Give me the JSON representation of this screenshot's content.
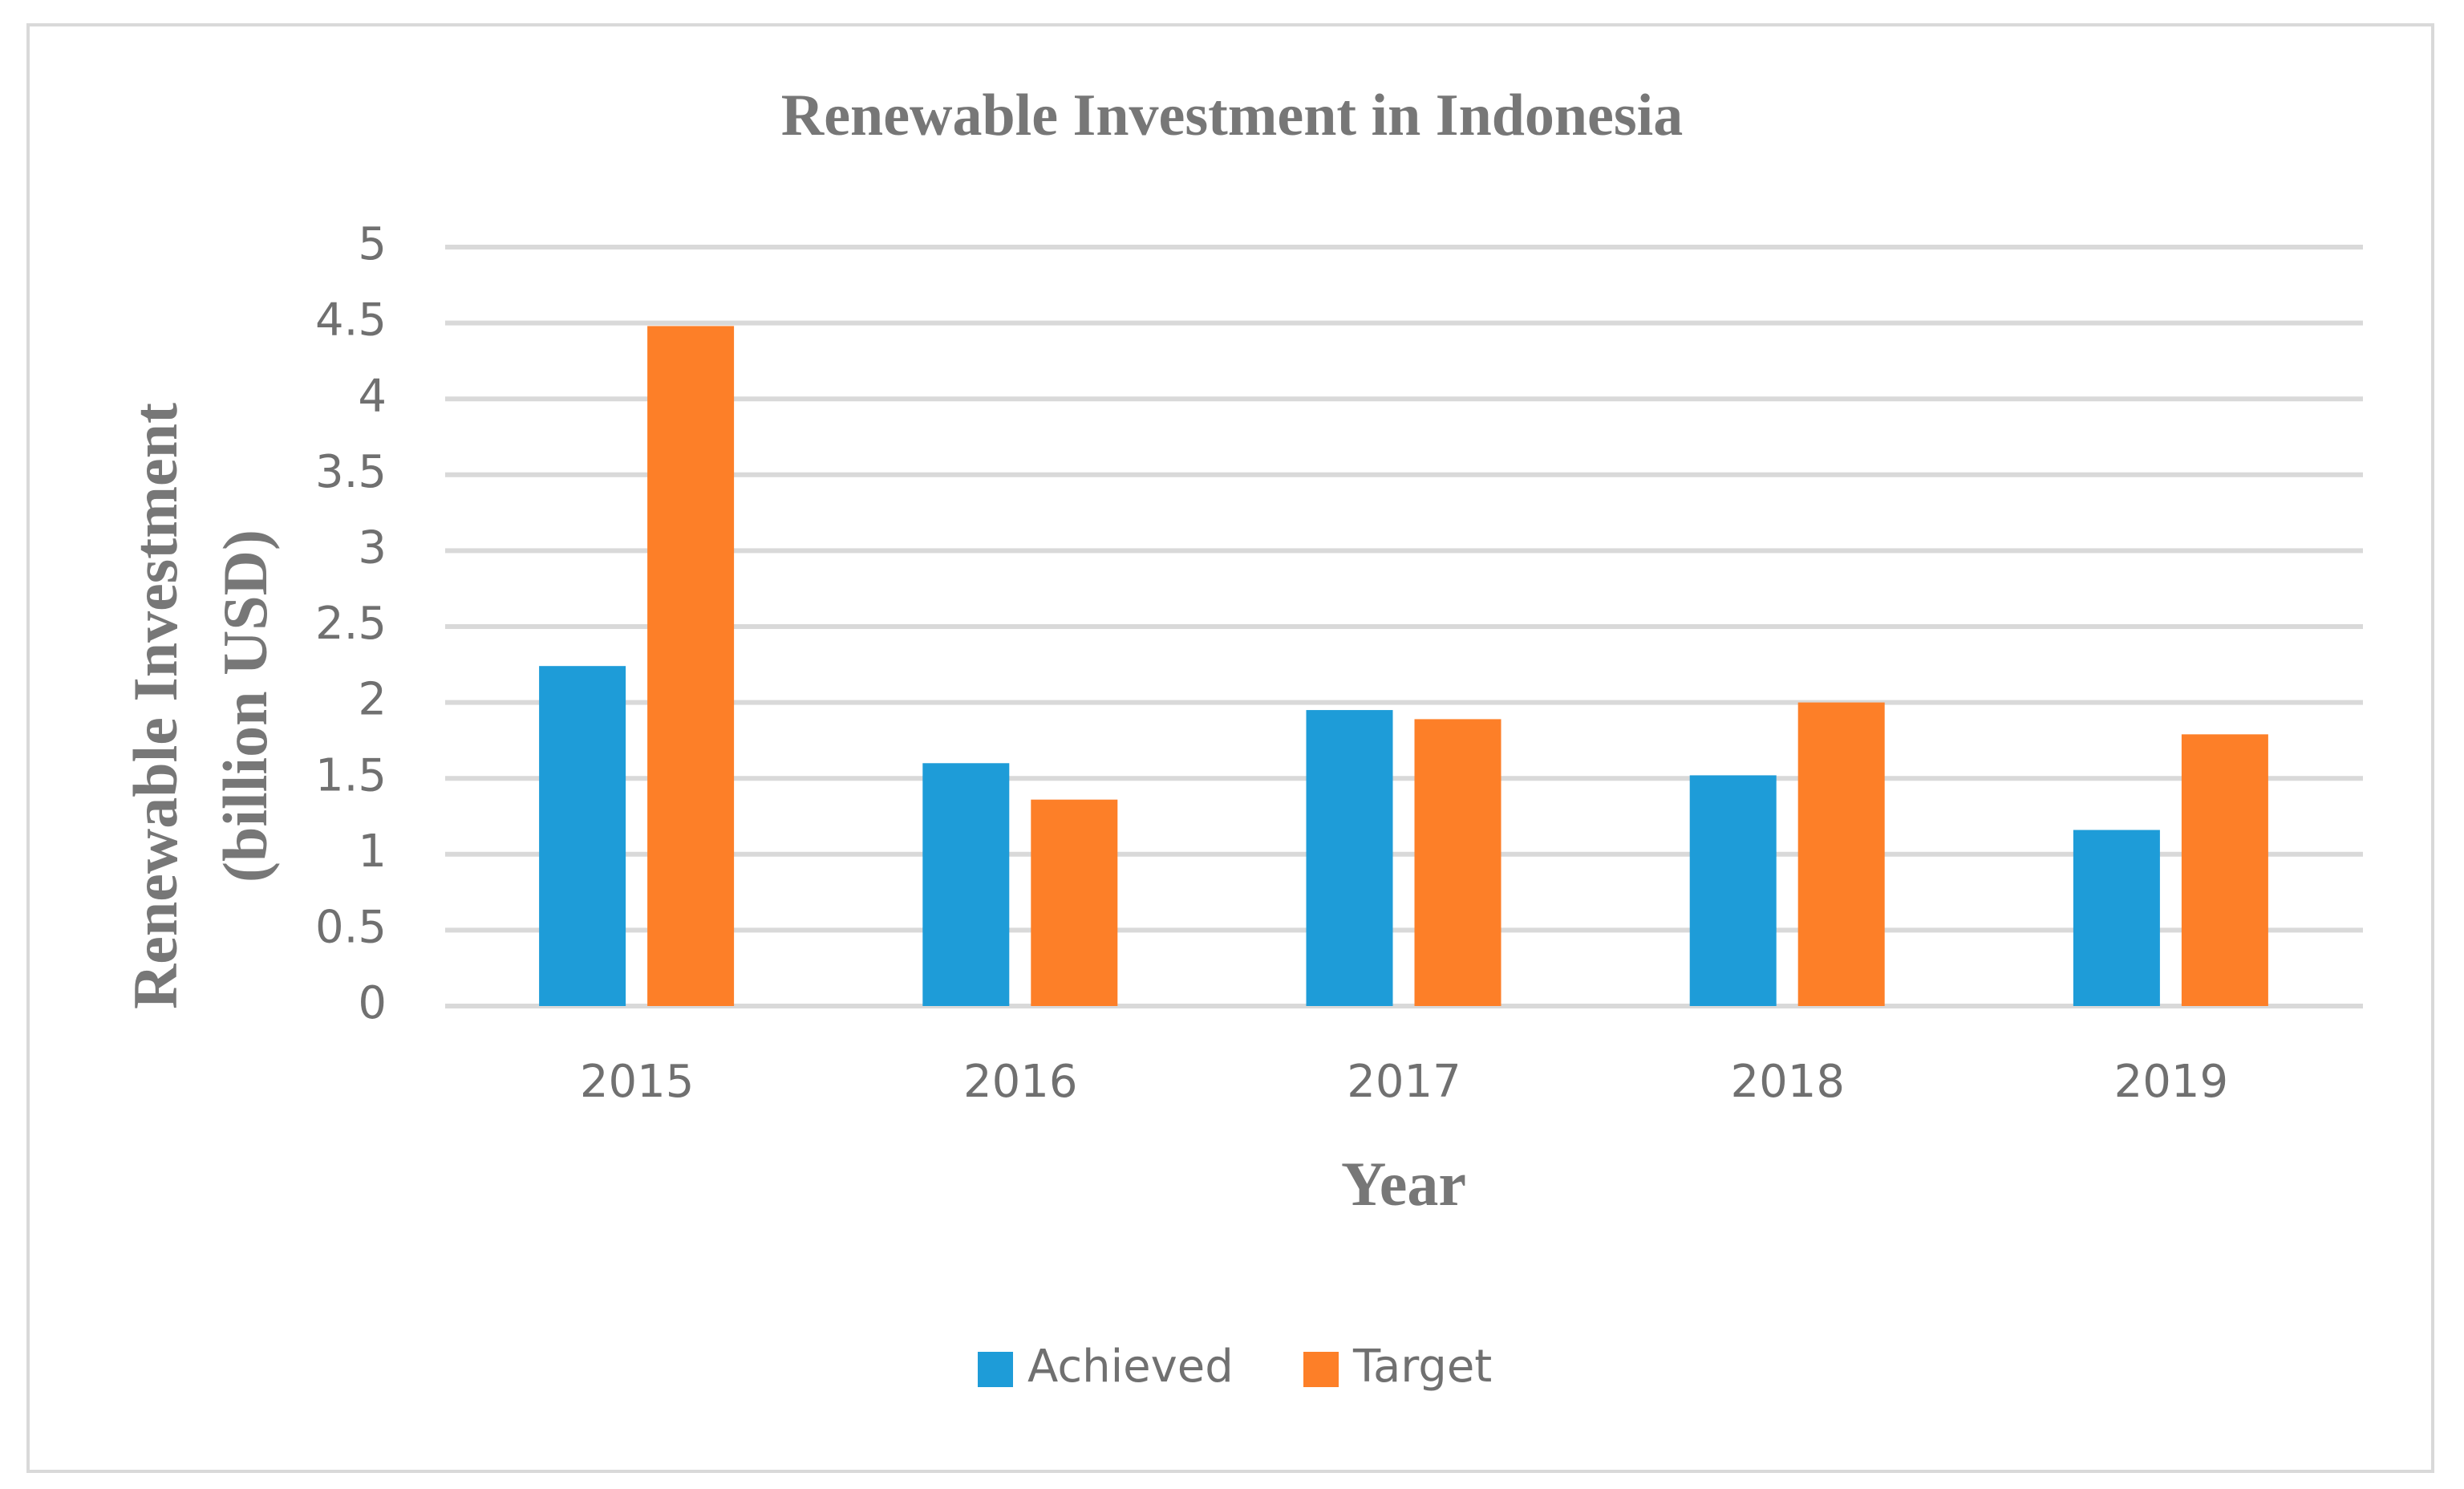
{
  "chart_data": {
    "type": "bar",
    "title": "Renewable Investment in Indonesia",
    "xlabel": "Year",
    "ylabel": [
      "Renewable Investment",
      "(billion USD)"
    ],
    "categories": [
      "2015",
      "2016",
      "2017",
      "2018",
      "2019"
    ],
    "series": [
      {
        "name": "Achieved",
        "color": "#1e9cd8",
        "values": [
          2.24,
          1.6,
          1.95,
          1.52,
          1.16
        ]
      },
      {
        "name": "Target",
        "color": "#fd7f28",
        "values": [
          4.48,
          1.36,
          1.89,
          2.0,
          1.79
        ]
      }
    ],
    "ylim": [
      0,
      5
    ],
    "yticks": [
      0,
      0.5,
      1,
      1.5,
      2,
      2.5,
      3,
      3.5,
      4,
      4.5,
      5
    ],
    "grid": true,
    "legend": "bottom"
  }
}
